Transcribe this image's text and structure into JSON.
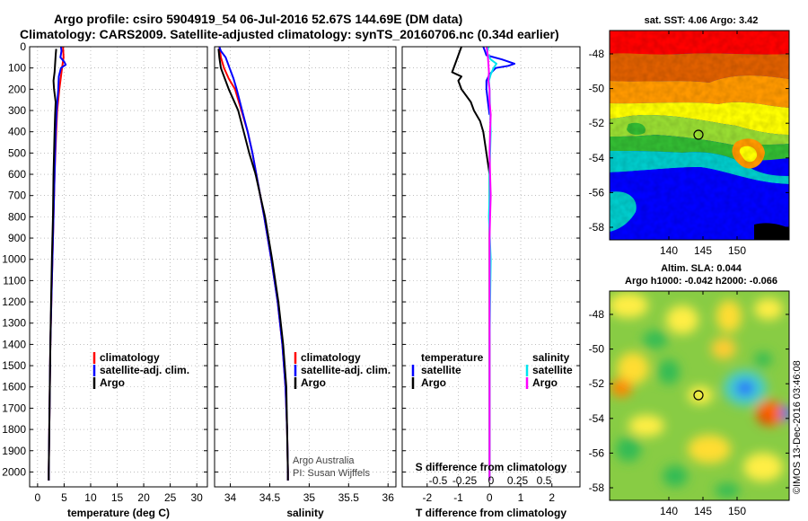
{
  "title": {
    "line1": "Argo profile: csiro 5904919_54 06-Jul-2016 52.67S 144.69E (DM data)",
    "line2": "Climatology: CARS2009. Satellite-adjusted climatology: synTS_20160706.nc (0.34d earlier)"
  },
  "colors": {
    "climatology": "#ff0000",
    "satellite": "#0000ff",
    "argo": "#000000",
    "s_satellite": "#00e5ee",
    "s_argo": "#ff00ff"
  },
  "legend1": {
    "items": [
      "climatology",
      "satellite-adj. clim.",
      "Argo"
    ]
  },
  "legend3": {
    "t_header": "temperature",
    "t_items": [
      "satellite",
      "Argo"
    ],
    "s_header": "salinity",
    "s_items": [
      "satellite",
      "Argo"
    ]
  },
  "credits": {
    "line1": "Argo Australia",
    "line2": "PI: Susan Wijffels"
  },
  "map1": {
    "title": "sat. SST: 4.06 Argo: 3.42",
    "yticks": [
      "-48",
      "-50",
      "-52",
      "-54",
      "-56",
      "-58"
    ],
    "xticks": [
      "140",
      "145",
      "150"
    ]
  },
  "map2": {
    "title1": "Altim. SLA: 0.044",
    "title2": "Argo h1000: -0.042 h2000: -0.066",
    "yticks": [
      "-48",
      "-50",
      "-52",
      "-54",
      "-56",
      "-58"
    ],
    "xticks": [
      "140",
      "145",
      "150"
    ]
  },
  "stamp": "©IMOS 13-Dec-2016 03:46:08",
  "chart_data": [
    {
      "type": "line",
      "title": "",
      "xlabel": "temperature (deg C)",
      "ylabel": "",
      "xlim": [
        -1.5,
        32
      ],
      "ylim": [
        2070,
        0
      ],
      "xticks": [
        "0",
        "5",
        "10",
        "15",
        "20",
        "25",
        "30"
      ],
      "yticks": [
        "0",
        "100",
        "200",
        "300",
        "400",
        "500",
        "600",
        "700",
        "800",
        "900",
        "1000",
        "1100",
        "1200",
        "1300",
        "1400",
        "1500",
        "1600",
        "1700",
        "1800",
        "1900",
        "2000"
      ],
      "series": [
        {
          "name": "climatology",
          "depth": [
            0,
            50,
            100,
            200,
            300,
            400,
            600,
            800,
            1000,
            1200,
            1400,
            1600,
            1800,
            2000,
            2040
          ],
          "values": [
            4.8,
            4.9,
            4.6,
            4.1,
            3.7,
            3.5,
            3.2,
            3.0,
            2.8,
            2.6,
            2.4,
            2.3,
            2.2,
            2.1,
            2.1
          ]
        },
        {
          "name": "satellite-adj. clim.",
          "depth": [
            0,
            20,
            50,
            70,
            85,
            100,
            140,
            200,
            300,
            400,
            600,
            800,
            1000,
            1200,
            1400,
            1600,
            1800,
            2000,
            2040
          ],
          "values": [
            4.4,
            4.5,
            4.3,
            5.0,
            5.3,
            4.4,
            4.0,
            3.9,
            3.6,
            3.4,
            3.2,
            3.0,
            2.8,
            2.6,
            2.4,
            2.3,
            2.2,
            2.1,
            2.1
          ]
        },
        {
          "name": "Argo",
          "depth": [
            10,
            40,
            80,
            120,
            160,
            200,
            260,
            320,
            400,
            500,
            600,
            800,
            1000,
            1200,
            1400,
            1600,
            1800,
            2000,
            2040
          ],
          "values": [
            3.5,
            3.4,
            3.3,
            3.2,
            3.0,
            3.1,
            3.4,
            3.3,
            3.2,
            3.1,
            3.0,
            2.9,
            2.7,
            2.55,
            2.4,
            2.3,
            2.2,
            2.1,
            2.1
          ]
        }
      ]
    },
    {
      "type": "line",
      "title": "",
      "xlabel": "salinity",
      "ylabel": "",
      "xlim": [
        33.8,
        36.1
      ],
      "ylim": [
        2070,
        0
      ],
      "xticks": [
        "34",
        "34.5",
        "35",
        "35.5",
        "36"
      ],
      "series": [
        {
          "name": "climatology",
          "depth": [
            0,
            50,
            100,
            150,
            200,
            300,
            400,
            500,
            600,
            800,
            1000,
            1200,
            1400,
            1600,
            1800,
            2000,
            2040
          ],
          "values": [
            33.86,
            33.88,
            33.92,
            33.98,
            34.06,
            34.14,
            34.22,
            34.28,
            34.33,
            34.43,
            34.52,
            34.6,
            34.66,
            34.7,
            34.72,
            34.73,
            34.73
          ]
        },
        {
          "name": "satellite-adj. clim.",
          "depth": [
            0,
            20,
            50,
            100,
            150,
            200,
            300,
            400,
            500,
            600,
            800,
            1000,
            1200,
            1400,
            1600,
            1800,
            2000,
            2040
          ],
          "values": [
            33.86,
            33.88,
            33.94,
            33.99,
            34.04,
            34.08,
            34.15,
            34.22,
            34.28,
            34.33,
            34.43,
            34.52,
            34.6,
            34.66,
            34.7,
            34.72,
            34.73,
            34.73
          ]
        },
        {
          "name": "Argo",
          "depth": [
            10,
            50,
            100,
            150,
            200,
            250,
            300,
            400,
            500,
            600,
            700,
            800,
            1000,
            1200,
            1400,
            1600,
            1800,
            2000,
            2040
          ],
          "values": [
            33.85,
            33.86,
            33.88,
            33.93,
            33.98,
            34.04,
            34.1,
            34.17,
            34.24,
            34.32,
            34.38,
            34.44,
            34.53,
            34.61,
            34.67,
            34.71,
            34.72,
            34.73,
            34.73
          ]
        }
      ]
    },
    {
      "type": "line",
      "title": "",
      "xlabel": "T difference from climatology",
      "ylabel": "",
      "xlim": [
        -2.8,
        2.9
      ],
      "ylim": [
        2070,
        0
      ],
      "xticks": [
        "-2",
        "-1",
        "0",
        "1",
        "2"
      ],
      "x2label": "S difference from climatology",
      "x2ticks": [
        "-0.5",
        "-0.25",
        "0",
        "0.25",
        "0.5"
      ],
      "series": [
        {
          "name": "T satellite",
          "depth": [
            0,
            20,
            40,
            60,
            80,
            90,
            100,
            130,
            160,
            200,
            260,
            320
          ],
          "values": [
            -0.2,
            -0.15,
            -0.1,
            0.4,
            0.8,
            0.6,
            0.2,
            0.0,
            -0.1,
            -0.1,
            -0.05,
            0.0
          ]
        },
        {
          "name": "T Argo",
          "depth": [
            0,
            40,
            80,
            120,
            140,
            160,
            200,
            260,
            300,
            350,
            400,
            500,
            600,
            800,
            1000,
            1400,
            1800,
            2040
          ],
          "values": [
            -0.9,
            -1.0,
            -1.1,
            -1.2,
            -0.9,
            -1.0,
            -0.9,
            -0.6,
            -0.5,
            -0.3,
            -0.2,
            -0.1,
            0.0,
            0.0,
            0.0,
            0.0,
            0.0,
            0.0
          ]
        },
        {
          "name": "S satellite",
          "depth": [
            0,
            30,
            60,
            80,
            100,
            130,
            160,
            200,
            300,
            400,
            500,
            600,
            700,
            800,
            1000,
            1200,
            1400,
            1600,
            1800,
            2040
          ],
          "values": [
            -0.02,
            -0.04,
            0.02,
            0.12,
            0.07,
            0.02,
            -0.01,
            0.0,
            0.01,
            0.02,
            0.01,
            0.0,
            0.0,
            -0.01,
            0.02,
            0.01,
            0.0,
            0.0,
            0.0,
            0.0
          ]
        },
        {
          "name": "S Argo",
          "depth": [
            0,
            40,
            80,
            120,
            160,
            200,
            260,
            320,
            400,
            500,
            600,
            700,
            800,
            900,
            1000,
            1200,
            1400,
            1600,
            1800,
            2040
          ],
          "values": [
            -0.05,
            -0.03,
            -0.02,
            -0.01,
            -0.02,
            0.0,
            0.0,
            0.02,
            0.01,
            0.0,
            0.01,
            0.02,
            0.01,
            0.0,
            0.0,
            0.0,
            0.0,
            0.0,
            0.0,
            0.0
          ]
        }
      ]
    }
  ]
}
